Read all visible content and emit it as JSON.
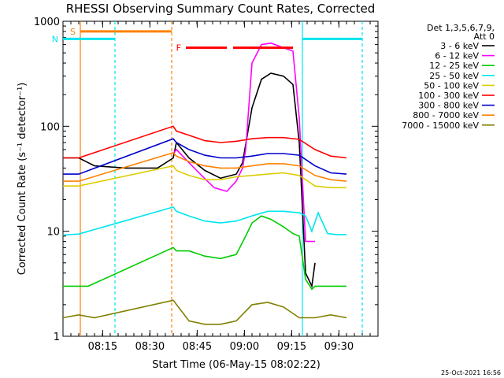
{
  "chart_data": {
    "type": "line",
    "title": "RHESSI Observing Summary Count Rates, Corrected",
    "xlabel": "Start Time (06-May-15 08:02:22)",
    "ylabel": "Corrected Count Rate (s⁻¹ detector⁻¹)",
    "yscale": "log",
    "ylim": [
      1,
      1000
    ],
    "xlim_minutes": [
      0,
      100
    ],
    "x_tick_labels": [
      "08:15",
      "08:30",
      "08:45",
      "09:00",
      "09:15",
      "09:30"
    ],
    "x_tick_minutes": [
      12.6,
      27.6,
      42.6,
      57.6,
      72.6,
      87.6
    ],
    "y_tick_labels": [
      "1",
      "10",
      "100",
      "1000"
    ],
    "y_tick_values": [
      1,
      10,
      100,
      1000
    ],
    "legend_header": [
      "Det 1,3,5,6,7,9,",
      "Att 0"
    ],
    "legend_placement": "right",
    "series": [
      {
        "name": "3 - 6 keV",
        "color": "#000000",
        "points": [
          [
            0,
            50
          ],
          [
            5,
            50
          ],
          [
            10,
            42
          ],
          [
            20,
            40
          ],
          [
            30,
            40
          ],
          [
            35,
            50
          ],
          [
            36,
            70
          ],
          [
            40,
            50
          ],
          [
            45,
            38
          ],
          [
            50,
            32
          ],
          [
            55,
            35
          ],
          [
            57,
            45
          ],
          [
            60,
            150
          ],
          [
            63,
            280
          ],
          [
            66,
            320
          ],
          [
            70,
            300
          ],
          [
            73,
            250
          ],
          [
            75,
            70
          ],
          [
            77,
            4
          ],
          [
            79,
            3
          ],
          [
            80,
            5
          ]
        ]
      },
      {
        "name": "6 - 12 keV",
        "color": "#ff00ff",
        "points": [
          [
            35,
            55
          ],
          [
            36,
            60
          ],
          [
            40,
            45
          ],
          [
            44,
            34
          ],
          [
            48,
            26
          ],
          [
            52,
            24
          ],
          [
            55,
            30
          ],
          [
            57,
            40
          ],
          [
            58,
            60
          ],
          [
            60,
            400
          ],
          [
            63,
            600
          ],
          [
            66,
            620
          ],
          [
            70,
            560
          ],
          [
            73,
            520
          ],
          [
            75,
            120
          ],
          [
            77,
            8
          ],
          [
            80,
            8
          ]
        ]
      },
      {
        "name": "12 - 25 keV",
        "color": "#00cc00",
        "points": [
          [
            0,
            3.0
          ],
          [
            8,
            3.0
          ],
          [
            35,
            7
          ],
          [
            36,
            6.5
          ],
          [
            40,
            6.5
          ],
          [
            45,
            5.8
          ],
          [
            50,
            5.5
          ],
          [
            55,
            6
          ],
          [
            58,
            9
          ],
          [
            60,
            12
          ],
          [
            63,
            14
          ],
          [
            66,
            13
          ],
          [
            70,
            11
          ],
          [
            73,
            9.5
          ],
          [
            75,
            9
          ],
          [
            77,
            3.5
          ],
          [
            79,
            2.8
          ],
          [
            80,
            3.0
          ],
          [
            88,
            3.0
          ],
          [
            90,
            3.0
          ]
        ]
      },
      {
        "name": "25 - 50 keV",
        "color": "#00e5ee",
        "points": [
          [
            0,
            9.2
          ],
          [
            5,
            9.4
          ],
          [
            35,
            17
          ],
          [
            36,
            15.5
          ],
          [
            40,
            14
          ],
          [
            45,
            12.5
          ],
          [
            50,
            12
          ],
          [
            55,
            12.5
          ],
          [
            60,
            14
          ],
          [
            65,
            15.5
          ],
          [
            70,
            15.5
          ],
          [
            75,
            15
          ],
          [
            77,
            14
          ],
          [
            79,
            10
          ],
          [
            81,
            15
          ],
          [
            84,
            9.5
          ],
          [
            87,
            9.3
          ],
          [
            90,
            9.3
          ]
        ]
      },
      {
        "name": "50 - 100 keV",
        "color": "#ddcc00",
        "points": [
          [
            0,
            27
          ],
          [
            5,
            27
          ],
          [
            35,
            42
          ],
          [
            36,
            38
          ],
          [
            40,
            34
          ],
          [
            45,
            31
          ],
          [
            50,
            31
          ],
          [
            55,
            33
          ],
          [
            60,
            34
          ],
          [
            65,
            35
          ],
          [
            70,
            36
          ],
          [
            75,
            34
          ],
          [
            80,
            27
          ],
          [
            85,
            26
          ],
          [
            90,
            26
          ]
        ]
      },
      {
        "name": "100 - 300 keV",
        "color": "#ff0000",
        "points": [
          [
            0,
            50
          ],
          [
            5,
            50
          ],
          [
            35,
            100
          ],
          [
            36,
            90
          ],
          [
            40,
            82
          ],
          [
            45,
            73
          ],
          [
            50,
            70
          ],
          [
            55,
            72
          ],
          [
            60,
            76
          ],
          [
            65,
            78
          ],
          [
            70,
            78
          ],
          [
            75,
            75
          ],
          [
            80,
            60
          ],
          [
            85,
            52
          ],
          [
            90,
            50
          ]
        ]
      },
      {
        "name": "300 - 800 keV",
        "color": "#0000cc",
        "points": [
          [
            0,
            35
          ],
          [
            5,
            35
          ],
          [
            35,
            76
          ],
          [
            36,
            70
          ],
          [
            40,
            60
          ],
          [
            45,
            53
          ],
          [
            50,
            50
          ],
          [
            55,
            50
          ],
          [
            60,
            52
          ],
          [
            65,
            55
          ],
          [
            70,
            55
          ],
          [
            75,
            53
          ],
          [
            80,
            42
          ],
          [
            85,
            36
          ],
          [
            90,
            35
          ]
        ]
      },
      {
        "name": "800 - 7000 keV",
        "color": "#ff8000",
        "points": [
          [
            0,
            30
          ],
          [
            5,
            30
          ],
          [
            35,
            56
          ],
          [
            36,
            52
          ],
          [
            40,
            46
          ],
          [
            45,
            42
          ],
          [
            50,
            40
          ],
          [
            55,
            40
          ],
          [
            60,
            42
          ],
          [
            65,
            44
          ],
          [
            70,
            44
          ],
          [
            75,
            42
          ],
          [
            80,
            34
          ],
          [
            85,
            31
          ],
          [
            90,
            30
          ]
        ]
      },
      {
        "name": "7000 - 15000 keV",
        "color": "#808000",
        "points": [
          [
            0,
            1.5
          ],
          [
            5,
            1.6
          ],
          [
            10,
            1.5
          ],
          [
            35,
            2.2
          ],
          [
            40,
            1.4
          ],
          [
            45,
            1.3
          ],
          [
            50,
            1.3
          ],
          [
            55,
            1.4
          ],
          [
            60,
            2.0
          ],
          [
            65,
            2.1
          ],
          [
            70,
            1.9
          ],
          [
            75,
            1.5
          ],
          [
            80,
            1.5
          ],
          [
            85,
            1.6
          ],
          [
            90,
            1.5
          ]
        ]
      }
    ],
    "bars": [
      {
        "label": "S",
        "color": "#ff8000",
        "y_value": 800,
        "x_from": 5.5,
        "x_to": 34.5
      },
      {
        "label": "N",
        "color": "#00e5ee",
        "y_value": 680,
        "x_from": 0,
        "x_to": 16.5
      },
      {
        "label": "",
        "color": "#00e5ee",
        "y_value": 680,
        "x_from": 76,
        "x_to": 95
      },
      {
        "label": "F",
        "color": "#ff0000",
        "y_value": 560,
        "x_from": 39,
        "x_to": 52
      },
      {
        "label": "",
        "color": "#ff0000",
        "y_value": 560,
        "x_from": 54,
        "x_to": 73
      }
    ],
    "vlines": [
      {
        "x": 5.5,
        "color": "#ff8000",
        "style": "solid"
      },
      {
        "x": 16.5,
        "color": "#00e5ee",
        "style": "dashed"
      },
      {
        "x": 34.5,
        "color": "#ff8000",
        "style": "dashed"
      },
      {
        "x": 76,
        "color": "#00e5ee",
        "style": "solid"
      },
      {
        "x": 95,
        "color": "#00e5ee",
        "style": "dashed"
      }
    ]
  },
  "footer": {
    "timestamp": "25-Oct-2021 16:56"
  }
}
